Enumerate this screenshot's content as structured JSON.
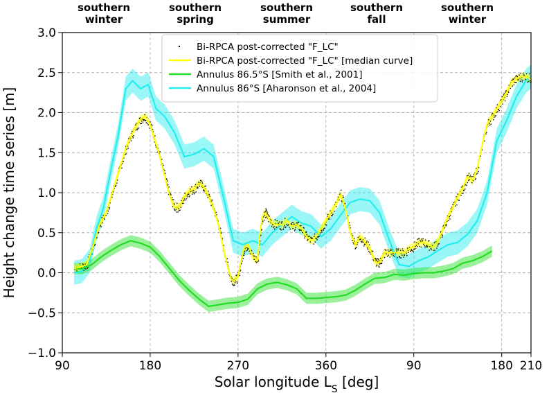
{
  "chart_data": {
    "type": "line",
    "xlabel": "Solar longitude L",
    "xlabel_sub": "S",
    "xlabel_unit": " [deg]",
    "ylabel": "Height change time series [m]",
    "ylim": [
      -1.0,
      3.0
    ],
    "yticks": [
      "−1.0",
      "−0.5",
      "0.0",
      "0.5",
      "1.0",
      "1.5",
      "2.0",
      "2.5",
      "3.0"
    ],
    "xticks": [
      "90",
      "180",
      "270",
      "360",
      "90",
      "180",
      "210"
    ],
    "grid": true,
    "legend_position": "top-center",
    "seasons": [
      {
        "line1": "southern",
        "line2": "winter"
      },
      {
        "line1": "southern",
        "line2": "spring"
      },
      {
        "line1": "southern",
        "line2": "summer"
      },
      {
        "line1": "southern",
        "line2": "fall"
      },
      {
        "line1": "southern",
        "line2": "winter"
      }
    ],
    "x_note": "x values are continuous solar longitude across two Mars years: 90..360 then 90..210 shown as 450..570 (label wraps)",
    "series": [
      {
        "name": "Bi-RPCA post-corrected \"F_LC\"",
        "style": "points",
        "color": "#000000"
      },
      {
        "name": "Bi-RPCA post-corrected \"F_LC\" [median curve]",
        "style": "line",
        "color": "#ffff00",
        "band": 0.05,
        "x": [
          102,
          110,
          115,
          122,
          128,
          135,
          140,
          145,
          150,
          155,
          160,
          165,
          170,
          175,
          180,
          185,
          190,
          195,
          198,
          202,
          205,
          210,
          215,
          220,
          225,
          230,
          235,
          240,
          245,
          250,
          255,
          260,
          263,
          266,
          270,
          273,
          276,
          280,
          285,
          290,
          292,
          295,
          298,
          300,
          305,
          310,
          315,
          320,
          325,
          330,
          335,
          340,
          345,
          350,
          355,
          360,
          365,
          370,
          375,
          380,
          385,
          390,
          395,
          400,
          405,
          410,
          413,
          416,
          420,
          425,
          430,
          435,
          440,
          445,
          450,
          455,
          460,
          465,
          470,
          475,
          480,
          485,
          490,
          495,
          500,
          505,
          510,
          515,
          520,
          525,
          530,
          535,
          540,
          545,
          550,
          555,
          560,
          565,
          570
        ],
        "y": [
          0.05,
          0.08,
          0.1,
          0.35,
          0.6,
          0.75,
          0.95,
          1.15,
          1.35,
          1.55,
          1.7,
          1.82,
          1.92,
          1.95,
          1.85,
          1.65,
          1.45,
          1.2,
          1.05,
          0.9,
          0.82,
          0.82,
          0.95,
          1.02,
          1.05,
          1.12,
          1.07,
          0.95,
          0.8,
          0.6,
          0.3,
          0.05,
          -0.08,
          -0.1,
          -0.05,
          0.15,
          0.3,
          0.35,
          0.2,
          0.15,
          0.45,
          0.7,
          0.75,
          0.7,
          0.62,
          0.6,
          0.6,
          0.65,
          0.58,
          0.6,
          0.55,
          0.45,
          0.4,
          0.45,
          0.55,
          0.65,
          0.75,
          0.85,
          0.98,
          0.8,
          0.5,
          0.35,
          0.45,
          0.38,
          0.3,
          0.15,
          0.12,
          0.15,
          0.25,
          0.25,
          0.25,
          0.25,
          0.25,
          0.3,
          0.33,
          0.38,
          0.38,
          0.35,
          0.32,
          0.4,
          0.55,
          0.7,
          0.82,
          0.95,
          1.05,
          1.2,
          1.15,
          1.3,
          1.6,
          1.85,
          1.95,
          2.05,
          2.15,
          2.25,
          2.38,
          2.42,
          2.45,
          2.45,
          2.42
        ]
      },
      {
        "name": "Annulus 86.5°S [Smith et al., 2001]",
        "style": "line",
        "color": "#22dd22",
        "band": 0.07,
        "x": [
          102,
          110,
          120,
          130,
          140,
          150,
          160,
          170,
          180,
          190,
          200,
          210,
          220,
          230,
          240,
          250,
          260,
          270,
          280,
          290,
          300,
          310,
          320,
          330,
          340,
          350,
          360,
          370,
          380,
          390,
          400,
          410,
          420,
          430,
          440,
          450,
          460,
          470,
          480,
          490,
          500,
          510,
          520,
          530
        ],
        "y": [
          0.05,
          0.05,
          0.1,
          0.2,
          0.28,
          0.35,
          0.4,
          0.37,
          0.32,
          0.2,
          0.05,
          -0.1,
          -0.22,
          -0.33,
          -0.42,
          -0.4,
          -0.38,
          -0.37,
          -0.33,
          -0.2,
          -0.14,
          -0.12,
          -0.15,
          -0.2,
          -0.32,
          -0.32,
          -0.31,
          -0.3,
          -0.28,
          -0.22,
          -0.14,
          -0.07,
          -0.06,
          -0.02,
          -0.03,
          -0.01,
          0.0,
          0.0,
          0.02,
          0.05,
          0.12,
          0.15,
          0.2,
          0.27
        ]
      },
      {
        "name": "Annulus 86°S [Aharonson et al., 2004]",
        "style": "line",
        "color": "#22eeee",
        "band": 0.15,
        "x": [
          102,
          110,
          118,
          125,
          132,
          140,
          147,
          155,
          162,
          170,
          178,
          186,
          195,
          205,
          215,
          225,
          235,
          245,
          255,
          265,
          275,
          285,
          295,
          305,
          315,
          325,
          335,
          345,
          355,
          365,
          375,
          385,
          395,
          405,
          415,
          425,
          435,
          445,
          455,
          465,
          475,
          485,
          495,
          505,
          515,
          525,
          535,
          545,
          555,
          565,
          570
        ],
        "y": [
          0.0,
          0.02,
          0.15,
          0.55,
          0.8,
          1.3,
          1.7,
          2.3,
          2.4,
          2.3,
          2.35,
          2.05,
          1.95,
          1.75,
          1.45,
          1.48,
          1.55,
          1.45,
          0.95,
          0.4,
          0.35,
          0.4,
          0.35,
          0.5,
          0.6,
          0.7,
          0.62,
          0.58,
          0.45,
          0.55,
          0.72,
          0.88,
          0.92,
          0.9,
          0.75,
          0.4,
          0.1,
          0.08,
          0.15,
          0.2,
          0.28,
          0.35,
          0.38,
          0.48,
          0.65,
          1.0,
          1.65,
          1.9,
          2.2,
          2.4,
          2.45
        ]
      }
    ]
  }
}
